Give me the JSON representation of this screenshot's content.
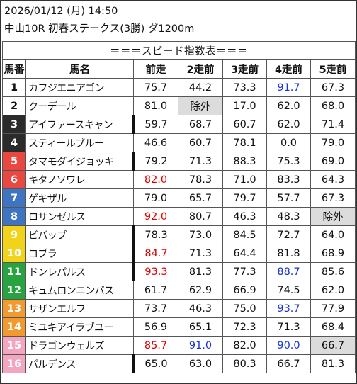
{
  "header": {
    "datetime": "2026/01/12 (月) 14:50",
    "race": "中山10R 初春ステークス(3勝) ダ1200m"
  },
  "table_title": "＝＝＝スピード指数表＝＝＝",
  "columns": [
    "馬番",
    "馬名",
    "前走",
    "2走前",
    "3走前",
    "4走前",
    "5走前"
  ],
  "colors": {
    "gate1": "#ffffff",
    "gate2": "#ffffff",
    "gate3": "#2b2b2b",
    "gate4": "#2b2b2b",
    "gate5": "#e8483f",
    "gate6": "#e8483f",
    "gate7": "#3e74c2",
    "gate8": "#3e74c2",
    "gate9": "#f0d31a",
    "gate10": "#f0d31a",
    "gate11": "#27a33f",
    "gate12": "#27a33f",
    "gate13": "#f29a2e",
    "gate14": "#f29a2e",
    "gate15": "#f4a6c0",
    "gate16": "#f4a6c0",
    "red_text": "#e00000",
    "blue_text": "#1a33d6",
    "excluded_bg": "#dcdcdc"
  },
  "rows": [
    {
      "no": "1",
      "name": "カフジエニアゴン",
      "bg": "#ffffff",
      "fg": "#111111",
      "thick": false,
      "values": [
        {
          "v": "75.7"
        },
        {
          "v": "44.2"
        },
        {
          "v": "73.3"
        },
        {
          "v": "91.7",
          "c": "blue"
        },
        {
          "v": "67.3"
        }
      ]
    },
    {
      "no": "2",
      "name": "クーデール",
      "bg": "#ffffff",
      "fg": "#111111",
      "thick": false,
      "values": [
        {
          "v": "81.0"
        },
        {
          "v": "除外",
          "g": true
        },
        {
          "v": "17.0"
        },
        {
          "v": "62.0"
        },
        {
          "v": "68.0"
        }
      ]
    },
    {
      "no": "3",
      "name": "アイファースキャン",
      "bg": "#2b2b2b",
      "fg": "#ffffff",
      "thick": true,
      "values": [
        {
          "v": "59.7"
        },
        {
          "v": "68.7"
        },
        {
          "v": "60.7"
        },
        {
          "v": "62.0"
        },
        {
          "v": "71.4"
        }
      ]
    },
    {
      "no": "4",
      "name": "スティールブルー",
      "bg": "#2b2b2b",
      "fg": "#ffffff",
      "thick": false,
      "values": [
        {
          "v": "46.6"
        },
        {
          "v": "60.7"
        },
        {
          "v": "78.1"
        },
        {
          "v": "0.0"
        },
        {
          "v": "79.0"
        }
      ]
    },
    {
      "no": "5",
      "name": "タマモダイジョッキ",
      "bg": "#e8483f",
      "fg": "#ffffff",
      "thick": true,
      "values": [
        {
          "v": "79.2"
        },
        {
          "v": "71.3"
        },
        {
          "v": "88.3"
        },
        {
          "v": "75.3"
        },
        {
          "v": "69.0"
        }
      ]
    },
    {
      "no": "6",
      "name": "キタノソワレ",
      "bg": "#e8483f",
      "fg": "#ffffff",
      "thick": false,
      "values": [
        {
          "v": "82.0",
          "c": "red"
        },
        {
          "v": "78.3"
        },
        {
          "v": "71.0"
        },
        {
          "v": "83.3"
        },
        {
          "v": "64.3"
        }
      ]
    },
    {
      "no": "7",
      "name": "ゲキザル",
      "bg": "#3e74c2",
      "fg": "#ffffff",
      "thick": false,
      "values": [
        {
          "v": "79.0"
        },
        {
          "v": "65.7"
        },
        {
          "v": "79.7"
        },
        {
          "v": "57.7"
        },
        {
          "v": "67.3"
        }
      ]
    },
    {
      "no": "8",
      "name": "ロサンゼルス",
      "bg": "#3e74c2",
      "fg": "#ffffff",
      "thick": false,
      "values": [
        {
          "v": "92.0",
          "c": "red"
        },
        {
          "v": "80.7"
        },
        {
          "v": "46.3"
        },
        {
          "v": "48.3"
        },
        {
          "v": "除外",
          "g": true
        }
      ]
    },
    {
      "no": "9",
      "name": "ビバップ",
      "bg": "#f0d31a",
      "fg": "#ffffff",
      "thick": true,
      "values": [
        {
          "v": "78.3"
        },
        {
          "v": "73.0"
        },
        {
          "v": "84.5"
        },
        {
          "v": "72.7"
        },
        {
          "v": "64.0"
        }
      ]
    },
    {
      "no": "10",
      "name": "コブラ",
      "bg": "#f0d31a",
      "fg": "#ffffff",
      "thick": true,
      "values": [
        {
          "v": "84.7",
          "c": "red"
        },
        {
          "v": "71.3"
        },
        {
          "v": "64.4"
        },
        {
          "v": "81.8"
        },
        {
          "v": "68.9"
        }
      ]
    },
    {
      "no": "11",
      "name": "ドンレパルス",
      "bg": "#27a33f",
      "fg": "#ffffff",
      "thick": true,
      "values": [
        {
          "v": "93.3",
          "c": "red",
          "b": true
        },
        {
          "v": "81.3"
        },
        {
          "v": "77.3"
        },
        {
          "v": "88.7",
          "c": "blue"
        },
        {
          "v": "85.6"
        }
      ]
    },
    {
      "no": "12",
      "name": "キュムロンニンバス",
      "bg": "#27a33f",
      "fg": "#ffffff",
      "thick": false,
      "values": [
        {
          "v": "61.7"
        },
        {
          "v": "62.9"
        },
        {
          "v": "66.9"
        },
        {
          "v": "74.5"
        },
        {
          "v": "62.0"
        }
      ]
    },
    {
      "no": "13",
      "name": "サザンエルフ",
      "bg": "#f29a2e",
      "fg": "#ffffff",
      "thick": false,
      "values": [
        {
          "v": "73.7"
        },
        {
          "v": "46.3"
        },
        {
          "v": "75.0"
        },
        {
          "v": "93.7",
          "c": "blue",
          "b": true
        },
        {
          "v": "77.9"
        }
      ]
    },
    {
      "no": "14",
      "name": "ミユキアイラブユー",
      "bg": "#f29a2e",
      "fg": "#ffffff",
      "thick": false,
      "values": [
        {
          "v": "56.9"
        },
        {
          "v": "65.1"
        },
        {
          "v": "72.3"
        },
        {
          "v": "71.3"
        },
        {
          "v": "68.4"
        }
      ]
    },
    {
      "no": "15",
      "name": "ドラゴンウェルズ",
      "bg": "#f4a6c0",
      "fg": "#ffffff",
      "thick": false,
      "values": [
        {
          "v": "85.7",
          "c": "red"
        },
        {
          "v": "91.0",
          "c": "blue"
        },
        {
          "v": "82.0"
        },
        {
          "v": "90.0",
          "c": "blue"
        },
        {
          "v": "66.7",
          "g": true
        }
      ]
    },
    {
      "no": "16",
      "name": "パルデンス",
      "bg": "#f4a6c0",
      "fg": "#ffffff",
      "thick": true,
      "values": [
        {
          "v": "65.0"
        },
        {
          "v": "63.0"
        },
        {
          "v": "80.3"
        },
        {
          "v": "66.7"
        },
        {
          "v": "81.3"
        }
      ]
    }
  ]
}
